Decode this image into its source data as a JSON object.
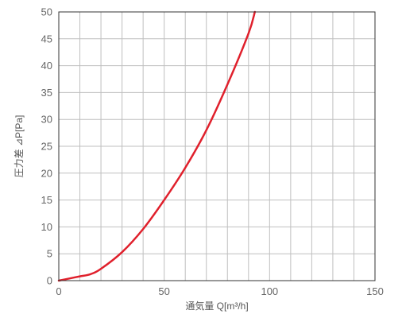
{
  "chart_data": {
    "type": "line",
    "xlabel": "通気量 Q[m³/h]",
    "ylabel": "圧力差 ⊿P[Pa]",
    "xlim": [
      0,
      150
    ],
    "ylim": [
      0,
      50
    ],
    "x_ticks": [
      "0",
      "50",
      "100",
      "150"
    ],
    "y_ticks": [
      "0",
      "5",
      "10",
      "15",
      "20",
      "25",
      "30",
      "35",
      "40",
      "45",
      "50"
    ],
    "grid": true,
    "x_grid_step": 10,
    "y_grid_step": 5,
    "colors": {
      "line": "#e0202c",
      "grid": "#bfbfbf",
      "frame": "#333333"
    },
    "series": [
      {
        "x": [
          0,
          5,
          10,
          15,
          20,
          30,
          40,
          50,
          60,
          70,
          80,
          90,
          93
        ],
        "values": [
          0,
          0.4,
          0.8,
          1.2,
          2.2,
          5.3,
          9.6,
          15.0,
          21.0,
          28.0,
          36.5,
          46.0,
          50
        ]
      }
    ]
  }
}
